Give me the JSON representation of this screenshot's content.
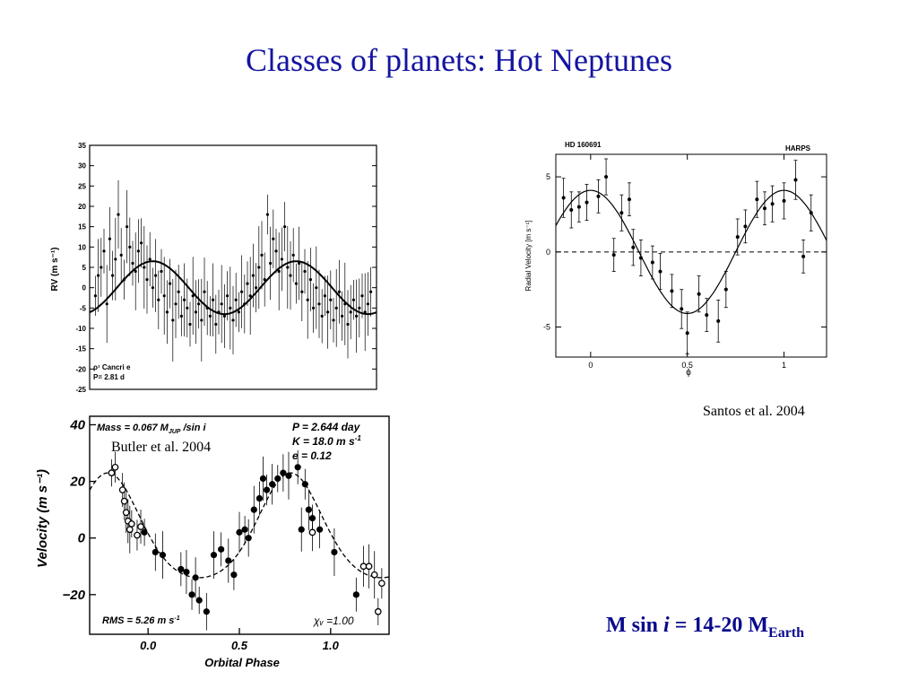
{
  "slide": {
    "title": "Classes of planets: Hot Neptunes",
    "citation_santos": "Santos et al. 2004",
    "citation_butler": "Butler et al. 2004",
    "formula": {
      "prefix": "M sin ",
      "italic": "i",
      "middle": " = 14-20 M",
      "sub": "Earth"
    }
  },
  "colors": {
    "title": "#1414a0",
    "formula": "#0a0a8c",
    "ink": "#000000"
  },
  "chart_data": [
    {
      "id": "rho1-cancri-e",
      "type": "scatter",
      "ylabel": "RV (m s⁻¹)",
      "annotation_lines": [
        "ρ¹ Cancri e",
        "P= 2.81 d"
      ],
      "ylim": [
        -25,
        35
      ],
      "yticks": [
        35,
        30,
        25,
        20,
        15,
        10,
        5,
        0,
        -5,
        -10,
        -15,
        -20,
        -25
      ],
      "x_range": [
        0,
        1
      ],
      "model": {
        "amplitude": 6.5,
        "cycles": 2,
        "phase0": 0.45
      },
      "points": [
        [
          0.02,
          -2
        ],
        [
          0.03,
          3
        ],
        [
          0.04,
          5
        ],
        [
          0.05,
          9
        ],
        [
          0.06,
          -4
        ],
        [
          0.07,
          12
        ],
        [
          0.08,
          3
        ],
        [
          0.09,
          7
        ],
        [
          0.1,
          18
        ],
        [
          0.11,
          8
        ],
        [
          0.12,
          2
        ],
        [
          0.13,
          15
        ],
        [
          0.14,
          10
        ],
        [
          0.15,
          6
        ],
        [
          0.16,
          4
        ],
        [
          0.17,
          9
        ],
        [
          0.18,
          11
        ],
        [
          0.19,
          5
        ],
        [
          0.2,
          2
        ],
        [
          0.21,
          7
        ],
        [
          0.22,
          0
        ],
        [
          0.23,
          3
        ],
        [
          0.24,
          -3
        ],
        [
          0.25,
          4
        ],
        [
          0.26,
          -2
        ],
        [
          0.27,
          -6
        ],
        [
          0.28,
          1
        ],
        [
          0.29,
          -8
        ],
        [
          0.3,
          -4
        ],
        [
          0.31,
          -1
        ],
        [
          0.32,
          -7
        ],
        [
          0.33,
          -3
        ],
        [
          0.34,
          -5
        ],
        [
          0.35,
          -9
        ],
        [
          0.36,
          -2
        ],
        [
          0.37,
          -6
        ],
        [
          0.38,
          -4
        ],
        [
          0.39,
          -8
        ],
        [
          0.4,
          -1
        ],
        [
          0.41,
          -5
        ],
        [
          0.42,
          -7
        ],
        [
          0.43,
          -3
        ],
        [
          0.44,
          -9
        ],
        [
          0.45,
          -6
        ],
        [
          0.46,
          -4
        ],
        [
          0.47,
          -7
        ],
        [
          0.48,
          -2
        ],
        [
          0.49,
          -5
        ],
        [
          0.5,
          -8
        ],
        [
          0.51,
          -3
        ],
        [
          0.52,
          -6
        ],
        [
          0.53,
          -1
        ],
        [
          0.54,
          -4
        ],
        [
          0.55,
          1
        ],
        [
          0.56,
          -2
        ],
        [
          0.57,
          3
        ],
        [
          0.58,
          0
        ],
        [
          0.59,
          5
        ],
        [
          0.6,
          8
        ],
        [
          0.61,
          2
        ],
        [
          0.62,
          18
        ],
        [
          0.63,
          6
        ],
        [
          0.64,
          12
        ],
        [
          0.65,
          9
        ],
        [
          0.66,
          4
        ],
        [
          0.67,
          7
        ],
        [
          0.68,
          15
        ],
        [
          0.69,
          5
        ],
        [
          0.7,
          3
        ],
        [
          0.71,
          8
        ],
        [
          0.72,
          1
        ],
        [
          0.73,
          6
        ],
        [
          0.74,
          -1
        ],
        [
          0.75,
          4
        ],
        [
          0.76,
          -3
        ],
        [
          0.77,
          2
        ],
        [
          0.78,
          -5
        ],
        [
          0.79,
          0
        ],
        [
          0.8,
          -4
        ],
        [
          0.81,
          -7
        ],
        [
          0.82,
          -2
        ],
        [
          0.83,
          -6
        ],
        [
          0.84,
          -3
        ],
        [
          0.85,
          -8
        ],
        [
          0.86,
          -5
        ],
        [
          0.87,
          -1
        ],
        [
          0.88,
          -7
        ],
        [
          0.89,
          -4
        ],
        [
          0.9,
          -9
        ],
        [
          0.91,
          -6
        ],
        [
          0.92,
          -3
        ],
        [
          0.93,
          -7
        ],
        [
          0.94,
          -5
        ],
        [
          0.95,
          -2
        ],
        [
          0.96,
          -6
        ],
        [
          0.97,
          -4
        ],
        [
          0.98,
          -1
        ]
      ],
      "error": 7
    },
    {
      "id": "hd-160691",
      "type": "scatter",
      "header_left": "HD 160691",
      "header_right": "HARPS",
      "ylabel": "Radial Velocity [m s⁻¹]",
      "xlabel": "ϕ",
      "xlim": [
        -0.18,
        1.22
      ],
      "xticks": [
        0,
        0.5,
        1
      ],
      "ylim": [
        -7,
        6.5
      ],
      "yticks": [
        5,
        0,
        -5
      ],
      "model": {
        "amplitude": 4.1,
        "phase0": 0.0
      },
      "points": [
        [
          -0.14,
          3.6,
          1.3
        ],
        [
          -0.1,
          2.8,
          1.2
        ],
        [
          -0.06,
          3.0,
          1.0
        ],
        [
          -0.02,
          3.3,
          1.2
        ],
        [
          0.04,
          3.7,
          1.1
        ],
        [
          0.08,
          5.0,
          1.2
        ],
        [
          0.12,
          -0.2,
          1.1
        ],
        [
          0.16,
          2.6,
          1.2
        ],
        [
          0.2,
          3.5,
          1.1
        ],
        [
          0.22,
          0.3,
          1.2
        ],
        [
          0.26,
          -0.4,
          1.2
        ],
        [
          0.32,
          -0.7,
          1.1
        ],
        [
          0.36,
          -1.3,
          1.2
        ],
        [
          0.42,
          -2.6,
          1.1
        ],
        [
          0.47,
          -3.8,
          1.3
        ],
        [
          0.5,
          -5.4,
          1.4
        ],
        [
          0.56,
          -2.8,
          1.2
        ],
        [
          0.6,
          -4.2,
          1.1
        ],
        [
          0.66,
          -4.6,
          1.4
        ],
        [
          0.7,
          -2.5,
          1.2
        ],
        [
          0.76,
          1.0,
          1.2
        ],
        [
          0.8,
          1.7,
          1.1
        ],
        [
          0.86,
          3.5,
          1.2
        ],
        [
          0.9,
          2.9,
          1.1
        ],
        [
          0.94,
          3.2,
          1.2
        ],
        [
          1.0,
          3.4,
          1.2
        ],
        [
          1.06,
          4.8,
          1.3
        ],
        [
          1.1,
          -0.3,
          1.1
        ],
        [
          1.14,
          2.6,
          1.2
        ]
      ]
    },
    {
      "id": "orbital-phase",
      "type": "scatter",
      "ylabel": "Velocity  (m s⁻¹)",
      "xlabel": "Orbital Phase",
      "xlim": [
        -0.32,
        1.32
      ],
      "xticks": [
        0.0,
        0.5,
        1.0
      ],
      "xtick_labels": [
        "0.0",
        "0.5",
        "1.0"
      ],
      "ylim": [
        -34,
        43
      ],
      "yticks": [
        40,
        20,
        0,
        -20
      ],
      "yticks_labels": [
        "40",
        "20",
        "0",
        "−20"
      ],
      "annotations": {
        "mass_line": [
          "Mass = 0.067 M",
          "JUP",
          " /sin i"
        ],
        "period": "P = 2.644 day",
        "semi_amplitude": "K = 18.0 m s",
        "eccentricity": "e = 0.12",
        "rms": "RMS = 5.26 m s",
        "chi": "χᵥ =1.00"
      },
      "model": {
        "amplitude": 18,
        "phase0": 0.0,
        "ecc_skew": 0.25
      },
      "open_points": [
        [
          -0.2,
          23
        ],
        [
          -0.18,
          25
        ],
        [
          -0.14,
          17
        ],
        [
          -0.13,
          13
        ],
        [
          -0.12,
          9
        ],
        [
          -0.11,
          6
        ],
        [
          -0.1,
          3
        ],
        [
          -0.09,
          5
        ],
        [
          -0.06,
          1
        ],
        [
          -0.04,
          4
        ],
        [
          0.9,
          2
        ],
        [
          1.18,
          -10
        ],
        [
          1.21,
          -10
        ],
        [
          1.24,
          -13
        ],
        [
          1.26,
          -26
        ],
        [
          1.28,
          -16
        ]
      ],
      "filled_points": [
        [
          -0.02,
          2
        ],
        [
          0.04,
          -5
        ],
        [
          0.08,
          -6
        ],
        [
          0.18,
          -11
        ],
        [
          0.21,
          -12
        ],
        [
          0.24,
          -20
        ],
        [
          0.26,
          -14
        ],
        [
          0.28,
          -22
        ],
        [
          0.32,
          -26
        ],
        [
          0.36,
          -6
        ],
        [
          0.4,
          -4
        ],
        [
          0.44,
          -8
        ],
        [
          0.47,
          -13
        ],
        [
          0.5,
          2
        ],
        [
          0.53,
          3
        ],
        [
          0.55,
          0
        ],
        [
          0.58,
          10
        ],
        [
          0.61,
          14
        ],
        [
          0.63,
          21
        ],
        [
          0.65,
          17
        ],
        [
          0.68,
          19
        ],
        [
          0.71,
          21
        ],
        [
          0.74,
          23
        ],
        [
          0.77,
          22
        ],
        [
          0.82,
          25
        ],
        [
          0.84,
          3
        ],
        [
          0.86,
          19
        ],
        [
          0.88,
          10
        ],
        [
          0.9,
          7
        ],
        [
          0.94,
          3
        ],
        [
          1.02,
          -5
        ],
        [
          1.14,
          -20
        ]
      ],
      "error": 6
    }
  ]
}
